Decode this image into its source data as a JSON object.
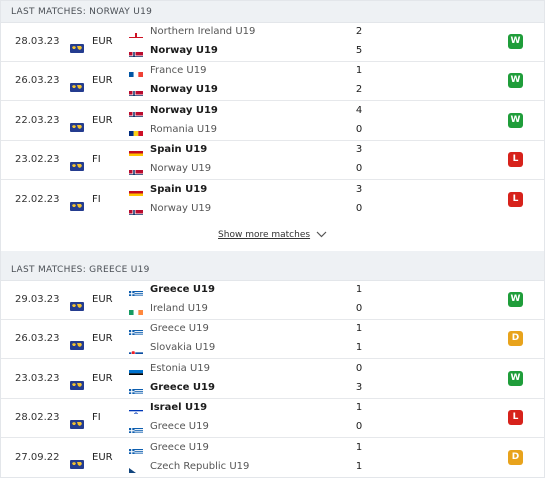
{
  "colors": {
    "win": "#1f9d3a",
    "loss": "#d7221b",
    "draw": "#e8a31c"
  },
  "sections": [
    {
      "title": "LAST MATCHES: NORWAY U19",
      "matches": [
        {
          "date": "28.03.23",
          "competition": "EUR",
          "home": {
            "name": "Northern Ireland U19",
            "flag": "england",
            "bold": false
          },
          "away": {
            "name": "Norway U19",
            "flag": "norway",
            "bold": true
          },
          "home_score": "2",
          "away_score": "5",
          "result": "W"
        },
        {
          "date": "26.03.23",
          "competition": "EUR",
          "home": {
            "name": "France U19",
            "flag": "france",
            "bold": false
          },
          "away": {
            "name": "Norway U19",
            "flag": "norway",
            "bold": true
          },
          "home_score": "1",
          "away_score": "2",
          "result": "W"
        },
        {
          "date": "22.03.23",
          "competition": "EUR",
          "home": {
            "name": "Norway U19",
            "flag": "norway",
            "bold": true
          },
          "away": {
            "name": "Romania U19",
            "flag": "romania",
            "bold": false
          },
          "home_score": "4",
          "away_score": "0",
          "result": "W"
        },
        {
          "date": "23.02.23",
          "competition": "FI",
          "home": {
            "name": "Spain U19",
            "flag": "spain",
            "bold": true
          },
          "away": {
            "name": "Norway U19",
            "flag": "norway",
            "bold": false
          },
          "home_score": "3",
          "away_score": "0",
          "result": "L"
        },
        {
          "date": "22.02.23",
          "competition": "FI",
          "home": {
            "name": "Spain U19",
            "flag": "spain",
            "bold": true
          },
          "away": {
            "name": "Norway U19",
            "flag": "norway",
            "bold": false
          },
          "home_score": "3",
          "away_score": "0",
          "result": "L"
        }
      ]
    },
    {
      "title": "LAST MATCHES: GREECE U19",
      "matches": [
        {
          "date": "29.03.23",
          "competition": "EUR",
          "home": {
            "name": "Greece U19",
            "flag": "greece",
            "bold": true
          },
          "away": {
            "name": "Ireland U19",
            "flag": "ireland",
            "bold": false
          },
          "home_score": "1",
          "away_score": "0",
          "result": "W"
        },
        {
          "date": "26.03.23",
          "competition": "EUR",
          "home": {
            "name": "Greece U19",
            "flag": "greece",
            "bold": false
          },
          "away": {
            "name": "Slovakia U19",
            "flag": "slovakia",
            "bold": false
          },
          "home_score": "1",
          "away_score": "1",
          "result": "D"
        },
        {
          "date": "23.03.23",
          "competition": "EUR",
          "home": {
            "name": "Estonia U19",
            "flag": "estonia",
            "bold": false
          },
          "away": {
            "name": "Greece U19",
            "flag": "greece",
            "bold": true
          },
          "home_score": "0",
          "away_score": "3",
          "result": "W"
        },
        {
          "date": "28.02.23",
          "competition": "FI",
          "home": {
            "name": "Israel U19",
            "flag": "israel",
            "bold": true
          },
          "away": {
            "name": "Greece U19",
            "flag": "greece",
            "bold": false
          },
          "home_score": "1",
          "away_score": "0",
          "result": "L"
        },
        {
          "date": "27.09.22",
          "competition": "EUR",
          "home": {
            "name": "Greece U19",
            "flag": "greece",
            "bold": false
          },
          "away": {
            "name": "Czech Republic U19",
            "flag": "czech",
            "bold": false
          },
          "home_score": "1",
          "away_score": "1",
          "result": "D"
        }
      ]
    }
  ],
  "show_more": {
    "label": "Show more matches",
    "icon": "chevron-down-icon"
  },
  "competition_icon": "world-map-icon",
  "result_labels": {
    "W": "W",
    "L": "L",
    "D": "D"
  }
}
